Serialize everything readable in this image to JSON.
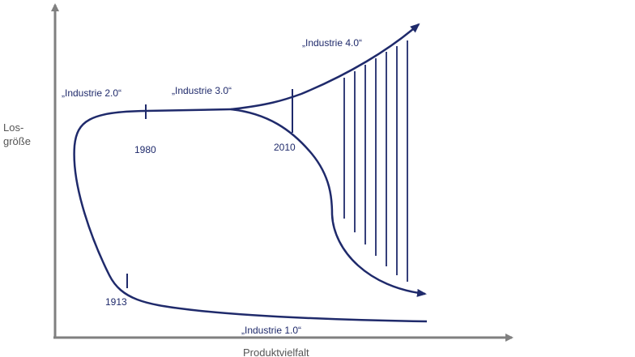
{
  "axes": {
    "y_label_line1": "Los-",
    "y_label_line2": "größe",
    "x_label": "Produktvielfalt"
  },
  "phases": {
    "industrie_1": "„Industrie 1.0“",
    "industrie_2": "„Industrie 2.0“",
    "industrie_3": "„Industrie 3.0“",
    "industrie_4": "„Industrie 4.0“"
  },
  "years": {
    "y1913": "1913",
    "y1980": "1980",
    "y2010": "2010"
  },
  "colors": {
    "curve": "#1f2a6b",
    "axis": "#808080"
  }
}
